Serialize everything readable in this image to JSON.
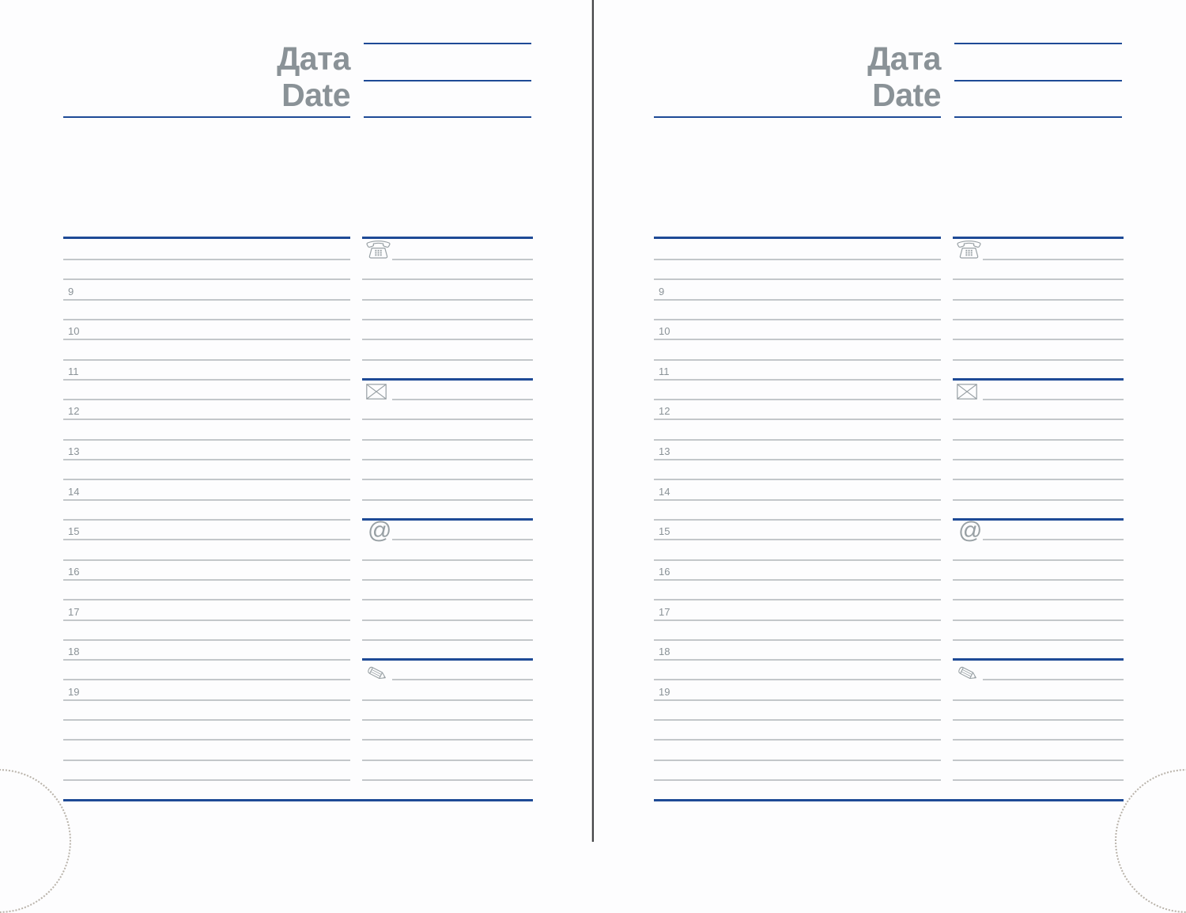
{
  "planner": {
    "header": {
      "title_ru": "Дата",
      "title_en": "Date"
    },
    "hours": [
      "9",
      "10",
      "11",
      "12",
      "13",
      "14",
      "15",
      "16",
      "17",
      "18",
      "19"
    ],
    "contact_sections": [
      {
        "icon": "phone-icon"
      },
      {
        "icon": "envelope-icon"
      },
      {
        "icon": "at-icon",
        "glyph": "@"
      },
      {
        "icon": "pencil-icon"
      }
    ],
    "pages": [
      {
        "side": "left"
      },
      {
        "side": "right"
      }
    ],
    "colors": {
      "accent_navy": "#1e4a96",
      "rule_gray": "#c3c7ca",
      "text_gray": "#8a9297",
      "icon_gray": "#98a0a4",
      "spine_dark": "#434446",
      "perforation_dot": "#b9b3aa",
      "background": "#fdfdfe"
    }
  }
}
